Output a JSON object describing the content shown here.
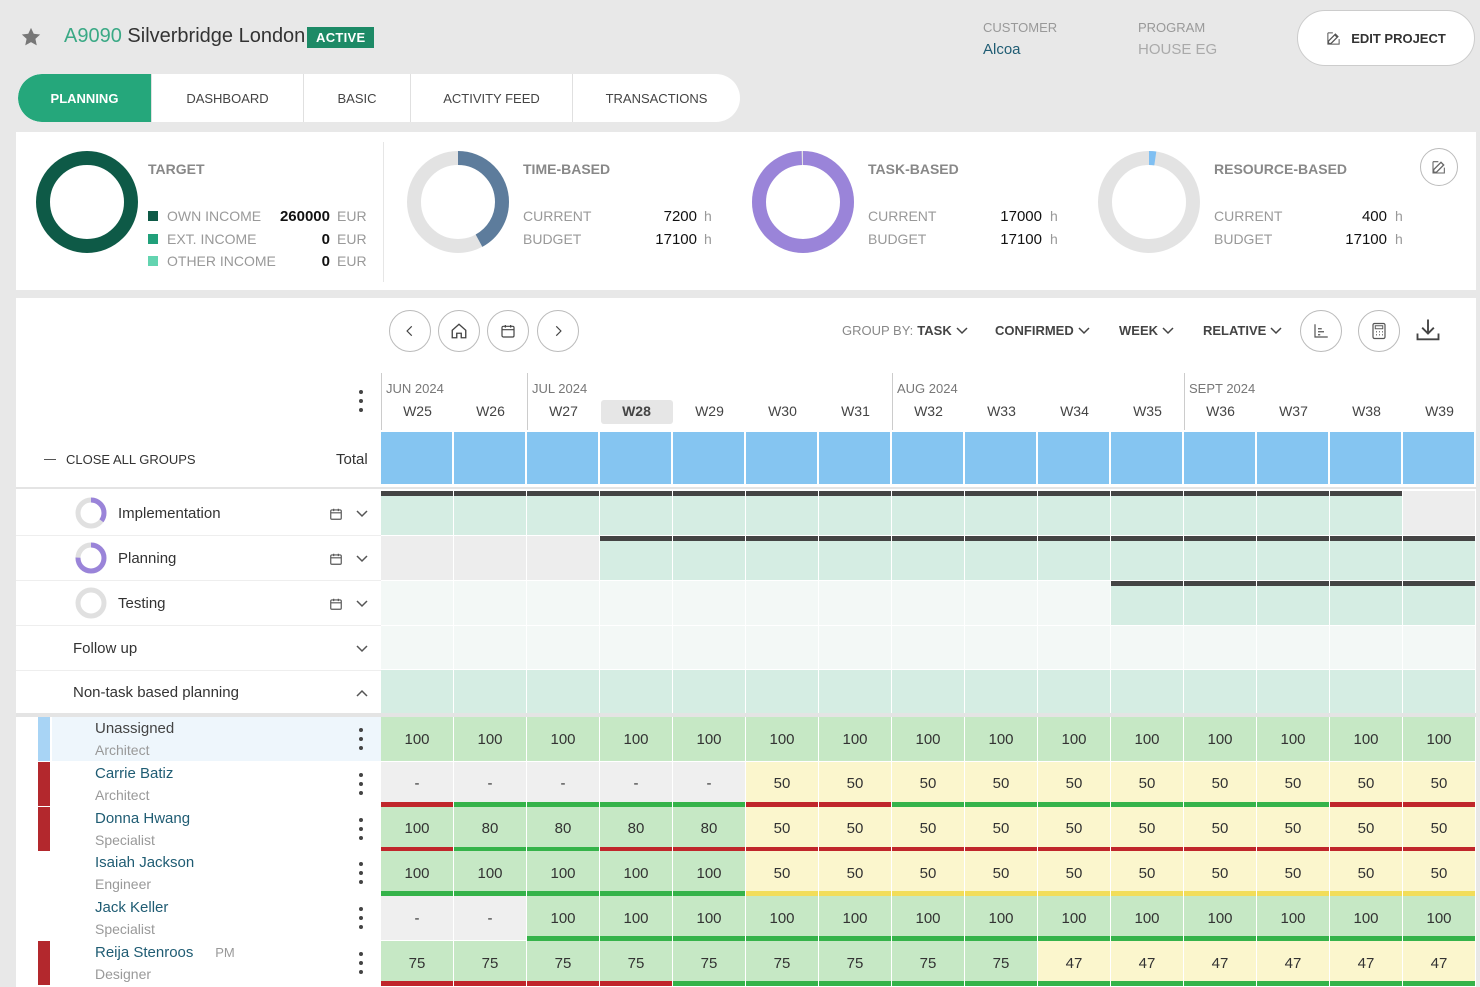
{
  "header": {
    "code": "A9090",
    "name": "Silverbridge London",
    "status": "ACTIVE",
    "customer_label": "CUSTOMER",
    "customer_value": "Alcoa",
    "program_label": "PROGRAM",
    "program_value": "HOUSE EG",
    "edit_label": "EDIT PROJECT"
  },
  "tabs": [
    {
      "label": "PLANNING",
      "active": true
    },
    {
      "label": "DASHBOARD"
    },
    {
      "label": "BASIC"
    },
    {
      "label": "ACTIVITY FEED"
    },
    {
      "label": "TRANSACTIONS"
    }
  ],
  "summary": {
    "target": {
      "title": "TARGET",
      "rows": [
        {
          "label": "OWN INCOME",
          "value": "260000",
          "unit": "EUR",
          "color": "#0e5a47"
        },
        {
          "label": "EXT. INCOME",
          "value": "0",
          "unit": "EUR",
          "color": "#21a07a"
        },
        {
          "label": "OTHER INCOME",
          "value": "0",
          "unit": "EUR",
          "color": "#63d4b0"
        }
      ]
    },
    "time": {
      "title": "TIME-BASED",
      "current_label": "CURRENT",
      "current": "7200",
      "budget_label": "BUDGET",
      "budget": "17100",
      "unit": "h",
      "fraction": 0.42,
      "color": "#5d7c9c"
    },
    "task": {
      "title": "TASK-BASED",
      "current_label": "CURRENT",
      "current": "17000",
      "budget_label": "BUDGET",
      "budget": "17100",
      "unit": "h",
      "fraction": 0.994,
      "color": "#9a84d9"
    },
    "resource": {
      "title": "RESOURCE-BASED",
      "current_label": "CURRENT",
      "current": "400",
      "budget_label": "BUDGET",
      "budget": "17100",
      "unit": "h",
      "fraction": 0.023,
      "color": "#7fbff2"
    }
  },
  "controls": {
    "group_by_label": "GROUP BY:",
    "group_by_value": "TASK",
    "confirmed": "CONFIRMED",
    "week": "WEEK",
    "relative": "RELATIVE"
  },
  "timeline": {
    "months": [
      {
        "label": "JUN 2024",
        "start": 0
      },
      {
        "label": "JUL 2024",
        "start": 2
      },
      {
        "label": "AUG 2024",
        "start": 7
      },
      {
        "label": "SEPT 2024",
        "start": 11
      }
    ],
    "weeks": [
      "W25",
      "W26",
      "W27",
      "W28",
      "W29",
      "W30",
      "W31",
      "W32",
      "W33",
      "W34",
      "W35",
      "W36",
      "W37",
      "W38",
      "W39"
    ],
    "current_week": "W28"
  },
  "grid": {
    "close_all": "CLOSE ALL GROUPS",
    "total": "Total"
  },
  "tasks": [
    {
      "name": "Implementation",
      "progress": 0.35,
      "start": 0,
      "end": 14
    },
    {
      "name": "Planning",
      "progress": 0.75,
      "start": 3,
      "end": 15
    },
    {
      "name": "Testing",
      "progress": 0.0,
      "start": 10,
      "end": 15
    }
  ],
  "groups": [
    {
      "name": "Follow up",
      "open": false
    },
    {
      "name": "Non-task based planning",
      "open": true
    }
  ],
  "resources": [
    {
      "name": "Unassigned",
      "role": "Architect",
      "tag": "",
      "side_color": "#a8d4f5",
      "values": [
        "100",
        "100",
        "100",
        "100",
        "100",
        "100",
        "100",
        "100",
        "100",
        "100",
        "100",
        "100",
        "100",
        "100",
        "100"
      ],
      "bg": [
        "g",
        "g",
        "g",
        "g",
        "g",
        "g",
        "g",
        "g",
        "g",
        "g",
        "g",
        "g",
        "g",
        "g",
        "g"
      ],
      "bars": [
        "",
        "",
        "",
        "",
        "",
        "",
        "",
        "",
        "",
        "",
        "",
        "",
        "",
        "",
        ""
      ]
    },
    {
      "name": "Carrie Batiz",
      "role": "Architect",
      "tag": "",
      "side_color": "#b3282d",
      "values": [
        "-",
        "-",
        "-",
        "-",
        "-",
        "50",
        "50",
        "50",
        "50",
        "50",
        "50",
        "50",
        "50",
        "50",
        "50"
      ],
      "bg": [
        "e",
        "e",
        "e",
        "e",
        "e",
        "y",
        "y",
        "y",
        "y",
        "y",
        "y",
        "y",
        "y",
        "y",
        "y"
      ],
      "bars": [
        "r",
        "G",
        "G",
        "G",
        "G",
        "r",
        "r",
        "G",
        "G",
        "G",
        "G",
        "G",
        "G",
        "r",
        "r"
      ]
    },
    {
      "name": "Donna Hwang",
      "role": "Specialist",
      "tag": "",
      "side_color": "#b3282d",
      "values": [
        "100",
        "80",
        "80",
        "80",
        "80",
        "50",
        "50",
        "50",
        "50",
        "50",
        "50",
        "50",
        "50",
        "50",
        "50"
      ],
      "bg": [
        "g",
        "g",
        "g",
        "g",
        "g",
        "y",
        "y",
        "y",
        "y",
        "y",
        "y",
        "y",
        "y",
        "y",
        "y"
      ],
      "bars": [
        "r",
        "G",
        "G",
        "r",
        "r",
        "r",
        "r",
        "r",
        "r",
        "r",
        "r",
        "r",
        "r",
        "r",
        "r"
      ]
    },
    {
      "name": "Isaiah Jackson",
      "role": "Engineer",
      "tag": "",
      "side_color": "",
      "values": [
        "100",
        "100",
        "100",
        "100",
        "100",
        "50",
        "50",
        "50",
        "50",
        "50",
        "50",
        "50",
        "50",
        "50",
        "50"
      ],
      "bg": [
        "g",
        "g",
        "g",
        "g",
        "g",
        "y",
        "y",
        "y",
        "y",
        "y",
        "y",
        "y",
        "y",
        "y",
        "y"
      ],
      "bars": [
        "G",
        "G",
        "G",
        "G",
        "G",
        "Y",
        "Y",
        "Y",
        "Y",
        "Y",
        "Y",
        "Y",
        "Y",
        "Y",
        "Y"
      ]
    },
    {
      "name": "Jack Keller",
      "role": "Specialist",
      "tag": "",
      "side_color": "",
      "values": [
        "-",
        "-",
        "100",
        "100",
        "100",
        "100",
        "100",
        "100",
        "100",
        "100",
        "100",
        "100",
        "100",
        "100",
        "100"
      ],
      "bg": [
        "e",
        "e",
        "g",
        "g",
        "g",
        "g",
        "g",
        "g",
        "g",
        "g",
        "g",
        "g",
        "g",
        "g",
        "g"
      ],
      "bars": [
        "",
        "",
        "G",
        "G",
        "G",
        "G",
        "G",
        "G",
        "G",
        "G",
        "G",
        "G",
        "G",
        "G",
        "G"
      ]
    },
    {
      "name": "Reija Stenroos",
      "role": "Designer",
      "tag": "PM",
      "side_color": "#b3282d",
      "values": [
        "75",
        "75",
        "75",
        "75",
        "75",
        "75",
        "75",
        "75",
        "75",
        "47",
        "47",
        "47",
        "47",
        "47",
        "47"
      ],
      "bg": [
        "g",
        "g",
        "g",
        "g",
        "g",
        "g",
        "g",
        "g",
        "g",
        "y",
        "y",
        "y",
        "y",
        "y",
        "y"
      ],
      "bars": [
        "r",
        "r",
        "r",
        "r",
        "G",
        "G",
        "G",
        "G",
        "G",
        "G",
        "G",
        "G",
        "G",
        "G",
        "G"
      ]
    }
  ]
}
